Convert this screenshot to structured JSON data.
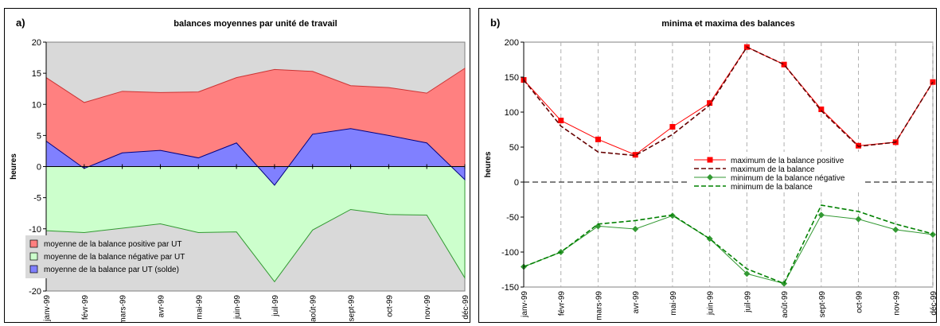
{
  "chart_data": [
    {
      "type": "area",
      "panel_label": "a)",
      "title": "balances moyennes par unité de travail",
      "ylabel": "heures",
      "xlabel": "",
      "categories": [
        "janv-99",
        "févr-99",
        "mars-99",
        "avr-99",
        "mai-99",
        "juin-99",
        "juil-99",
        "août-99",
        "sept-99",
        "oct-99",
        "nov-99",
        "déc-99"
      ],
      "ylim": [
        -20,
        20
      ],
      "yticks": [
        -20,
        -15,
        -10,
        -5,
        0,
        5,
        10,
        15,
        20
      ],
      "grid": false,
      "plot_background": "#d9d9d9",
      "legend_position": "bottom-left",
      "series": [
        {
          "name": "moyenne de la balance positive par UT",
          "color": "#ff8080",
          "values": [
            14.3,
            10.3,
            12.1,
            11.9,
            12.0,
            14.3,
            15.6,
            15.3,
            13.0,
            12.7,
            11.8,
            15.8
          ]
        },
        {
          "name": "moyenne de la balance négative par UT",
          "color": "#ccffcc",
          "values": [
            -10.3,
            -10.6,
            -9.9,
            -9.2,
            -10.6,
            -10.5,
            -18.5,
            -10.2,
            -6.9,
            -7.7,
            -7.8,
            -17.9
          ]
        },
        {
          "name": "moyenne de la balance par UT   (solde)",
          "color": "#8080ff",
          "values": [
            4.1,
            -0.3,
            2.2,
            2.6,
            1.4,
            3.8,
            -3.0,
            5.2,
            6.1,
            5.0,
            3.8,
            -2.1
          ]
        }
      ]
    },
    {
      "type": "line",
      "panel_label": "b)",
      "title": "minima et maxima des balances",
      "ylabel": "heures",
      "xlabel": "",
      "categories": [
        "janv-99",
        "févr-99",
        "mars-99",
        "avr-99",
        "mai-99",
        "juin-99",
        "juil-99",
        "août-99",
        "sept-99",
        "oct-99",
        "nov-99",
        "déc-99"
      ],
      "ylim": [
        -150,
        200
      ],
      "yticks": [
        -150,
        -100,
        -50,
        0,
        50,
        100,
        150,
        200
      ],
      "grid": "vertical dashed",
      "plot_background": "#ffffff",
      "legend_position": "center",
      "series": [
        {
          "name": "maximum de la balance positive",
          "color": "#ff0000",
          "style": "solid-square",
          "values": [
            146,
            88,
            61,
            39,
            79,
            113,
            193,
            168,
            104,
            52,
            57,
            143
          ]
        },
        {
          "name": "maximum de la balance",
          "color": "#660000",
          "style": "dashed",
          "values": [
            146,
            80,
            43,
            38,
            68,
            110,
            193,
            168,
            102,
            51,
            57,
            143
          ]
        },
        {
          "name": "minimum de la balance négative",
          "color": "#339933",
          "style": "solid-diamond",
          "values": [
            -121,
            -100,
            -63,
            -67,
            -48,
            -81,
            -131,
            -145,
            -47,
            -53,
            -68,
            -75
          ]
        },
        {
          "name": "minimum de la balance",
          "color": "#008000",
          "style": "dashed",
          "values": [
            -121,
            -100,
            -60,
            -55,
            -47,
            -81,
            -124,
            -145,
            -33,
            -42,
            -60,
            -74
          ]
        }
      ]
    }
  ]
}
